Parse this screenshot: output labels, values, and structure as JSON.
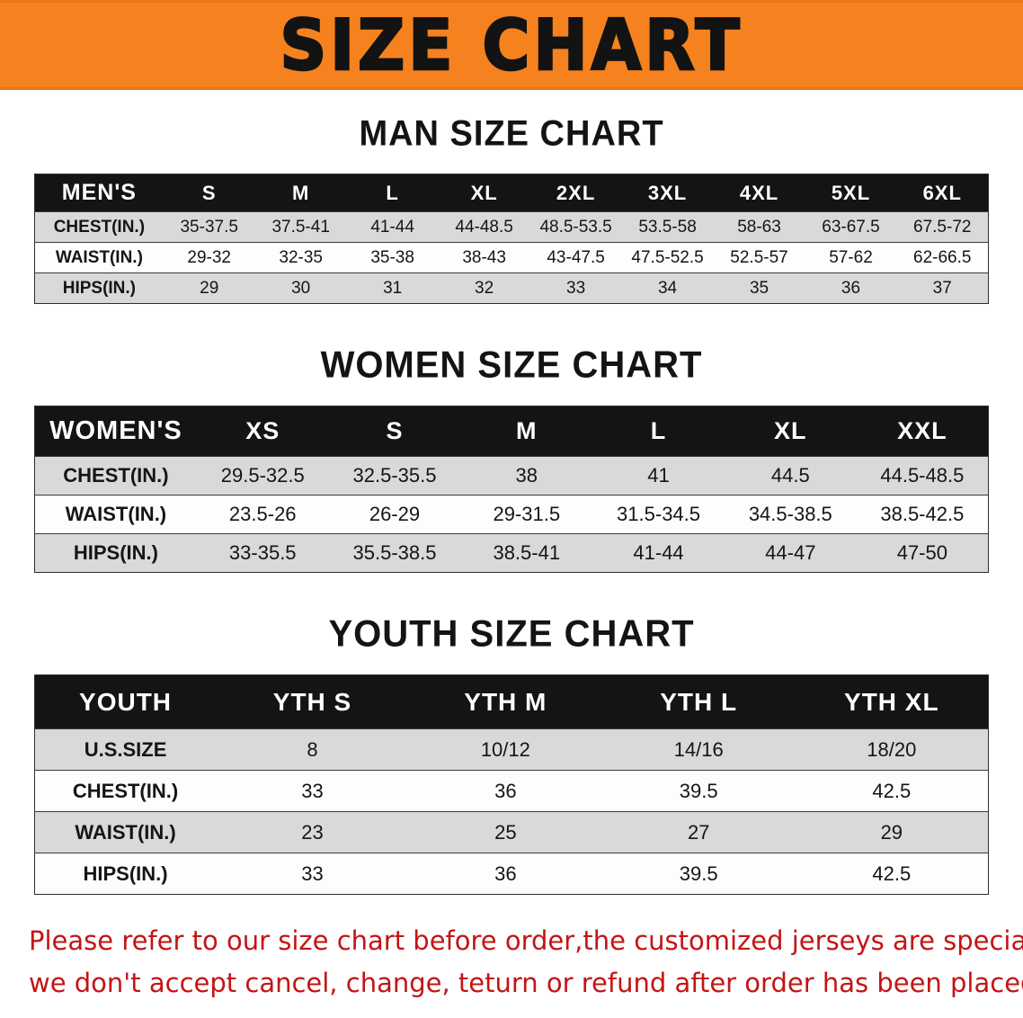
{
  "banner": {
    "title": "SIZE CHART",
    "bg_color": "#F5821F",
    "text_color": "#131313"
  },
  "sections": [
    {
      "id": "men",
      "heading": "MAN SIZE CHART",
      "header": [
        "MEN'S",
        "S",
        "M",
        "L",
        "XL",
        "2XL",
        "3XL",
        "4XL",
        "5XL",
        "6XL"
      ],
      "rows": [
        [
          "CHEST(IN.)",
          "35-37.5",
          "37.5-41",
          "41-44",
          "44-48.5",
          "48.5-53.5",
          "53.5-58",
          "58-63",
          "63-67.5",
          "67.5-72"
        ],
        [
          "WAIST(IN.)",
          "29-32",
          "32-35",
          "35-38",
          "38-43",
          "43-47.5",
          "47.5-52.5",
          "52.5-57",
          "57-62",
          "62-66.5"
        ],
        [
          "HIPS(IN.)",
          "29",
          "30",
          "31",
          "32",
          "33",
          "34",
          "35",
          "36",
          "37"
        ]
      ]
    },
    {
      "id": "women",
      "heading": "WOMEN SIZE CHART",
      "header": [
        "WOMEN'S",
        "XS",
        "S",
        "M",
        "L",
        "XL",
        "XXL"
      ],
      "rows": [
        [
          "CHEST(IN.)",
          "29.5-32.5",
          "32.5-35.5",
          "38",
          "41",
          "44.5",
          "44.5-48.5"
        ],
        [
          "WAIST(IN.)",
          "23.5-26",
          "26-29",
          "29-31.5",
          "31.5-34.5",
          "34.5-38.5",
          "38.5-42.5"
        ],
        [
          "HIPS(IN.)",
          "33-35.5",
          "35.5-38.5",
          "38.5-41",
          "41-44",
          "44-47",
          "47-50"
        ]
      ]
    },
    {
      "id": "youth",
      "heading": "YOUTH SIZE CHART",
      "header": [
        "YOUTH",
        "YTH S",
        "YTH M",
        "YTH L",
        "YTH XL"
      ],
      "rows": [
        [
          "U.S.SIZE",
          "8",
          "10/12",
          "14/16",
          "18/20"
        ],
        [
          "CHEST(IN.)",
          "33",
          "36",
          "39.5",
          "42.5"
        ],
        [
          "WAIST(IN.)",
          "23",
          "25",
          "27",
          "29"
        ],
        [
          "HIPS(IN.)",
          "33",
          "36",
          "39.5",
          "42.5"
        ]
      ]
    }
  ],
  "disclaimer": {
    "lines": [
      "Please refer to our size chart before order,the customized jerseys are special products,",
      "we don't accept cancel, change, teturn or refund after order has been placed!"
    ],
    "text_color": "#C41414"
  }
}
